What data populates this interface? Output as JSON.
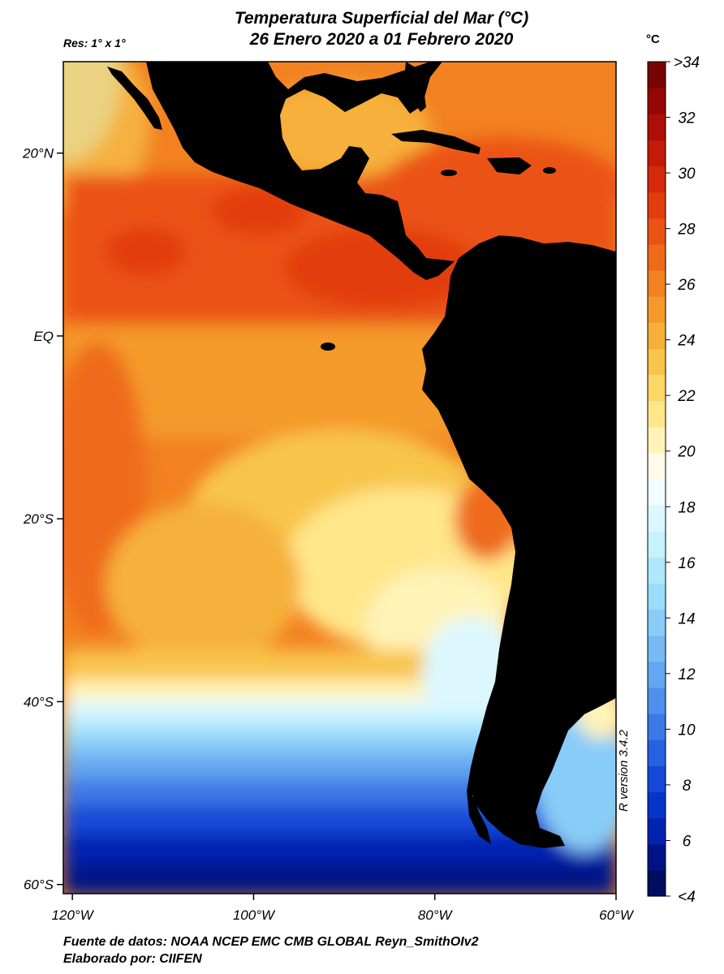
{
  "title": {
    "line1": "Temperatura Superficial del Mar (°C)",
    "line2": "26 Enero 2020 a 01 Febrero 2020"
  },
  "resolution": "Res: 1° x 1°",
  "unit": "°C",
  "footer": {
    "source": "Fuente de datos: NOAA NCEP EMC CMB GLOBAL Reyn_SmithOIv2",
    "author": "Elaborado por: CIIFEN"
  },
  "r_version": "R version 3.4.2",
  "map": {
    "lon_range": [
      -121,
      -60
    ],
    "lat_range": [
      -61,
      30
    ],
    "lat_ticks": [
      {
        "value": 20,
        "label": "20°N"
      },
      {
        "value": 0,
        "label": "EQ"
      },
      {
        "value": -20,
        "label": "20°S"
      },
      {
        "value": -40,
        "label": "40°S"
      },
      {
        "value": -60,
        "label": "60°S"
      }
    ],
    "lon_ticks": [
      {
        "value": -120,
        "label": "120°W"
      },
      {
        "value": -100,
        "label": "100°W"
      },
      {
        "value": -80,
        "label": "80°W"
      },
      {
        "value": -60,
        "label": "60°W"
      }
    ],
    "land_color": "#000000"
  },
  "colorbar": {
    "labels": [
      "<4",
      "6",
      "8",
      "10",
      "12",
      "14",
      "16",
      "18",
      "20",
      "22",
      "24",
      "26",
      "28",
      "30",
      "32",
      ">34"
    ],
    "colors": [
      "#000c5e",
      "#001386",
      "#0024b0",
      "#0535c8",
      "#1449d8",
      "#2760e0",
      "#3c78e6",
      "#5090ec",
      "#64a6f0",
      "#76b9f4",
      "#88ccf8",
      "#9adcfa",
      "#afe8fc",
      "#c6f2fd",
      "#dcf8fe",
      "#f0fcfe",
      "#fffbe8",
      "#fff3b8",
      "#ffe68a",
      "#fcd766",
      "#f8c54b",
      "#f6b03a",
      "#f49a2c",
      "#f28221",
      "#ef6a1a",
      "#eb5314",
      "#e23d0f",
      "#d52a0b",
      "#c41a08",
      "#ad0e07",
      "#940705",
      "#780303"
    ]
  }
}
